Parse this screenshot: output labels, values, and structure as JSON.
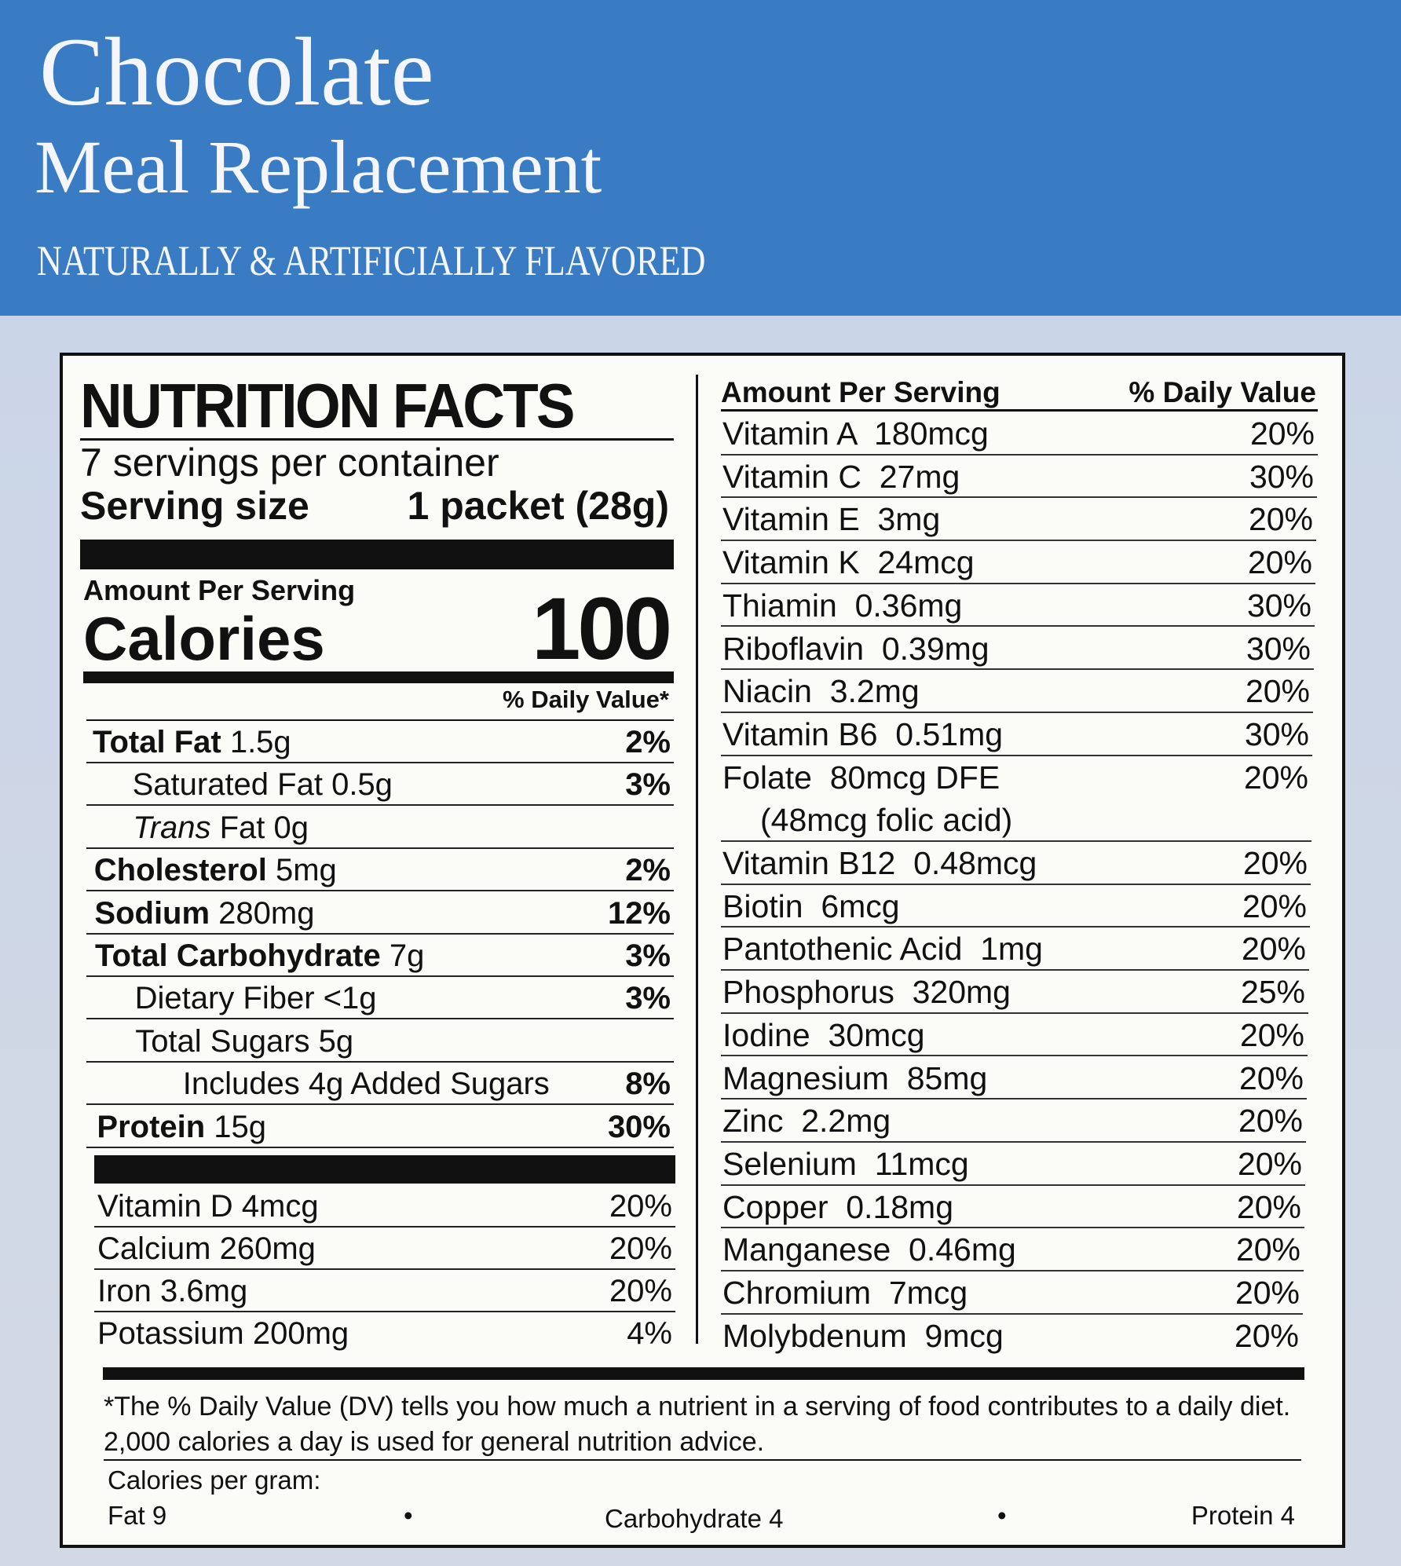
{
  "header": {
    "title": "Chocolate",
    "subtitle": "Meal Replacement",
    "flavor": "NATURALLY & ARTIFICIALLY FLAVORED"
  },
  "colors": {
    "header_blue": "#3a7cc4",
    "background": "#ccd5e4",
    "label_bg": "#fbfbf7"
  },
  "facts": {
    "title": "NUTRITION FACTS",
    "servings": "7 servings per container",
    "serving_size_label": "Serving size",
    "serving_size_value": "1 packet (28g)",
    "amount_per_serving": "Amount Per Serving",
    "calories_label": "Calories",
    "calories_value": "100",
    "dv_header": "% Daily Value*",
    "nutrients": [
      {
        "bold": "Total Fat",
        "text": " 1.5g",
        "dv": "2%",
        "indent": 0
      },
      {
        "bold": "",
        "text": "Saturated Fat 0.5g",
        "dv": "3%",
        "indent": 1
      },
      {
        "italic": "Trans",
        "text": " Fat 0g",
        "dv": "",
        "indent": 1
      },
      {
        "bold": "Cholesterol",
        "text": " 5mg",
        "dv": "2%",
        "indent": 0
      },
      {
        "bold": "Sodium",
        "text": " 280mg",
        "dv": "12%",
        "indent": 0
      },
      {
        "bold": "Total Carbohydrate",
        "text": " 7g",
        "dv": "3%",
        "indent": 0
      },
      {
        "bold": "",
        "text": "Dietary Fiber <1g",
        "dv": "3%",
        "indent": 1
      },
      {
        "bold": "",
        "text": "Total Sugars 5g",
        "dv": "",
        "indent": 1
      },
      {
        "bold": "",
        "text": "Includes 4g Added Sugars",
        "dv": "8%",
        "indent": 2
      },
      {
        "bold": "Protein",
        "text": " 15g",
        "dv": "30%",
        "indent": 0
      }
    ],
    "minerals": [
      {
        "text": "Vitamin D 4mcg",
        "dv": "20%"
      },
      {
        "text": "Calcium 260mg",
        "dv": "20%"
      },
      {
        "text": "Iron 3.6mg",
        "dv": "20%"
      },
      {
        "text": "Potassium 200mg",
        "dv": "4%"
      }
    ],
    "right_header": {
      "amount": "Amount Per Serving",
      "dv": "% Daily Value"
    },
    "vitamins": [
      {
        "text": "Vitamin A  180mcg",
        "dv": "20%"
      },
      {
        "text": "Vitamin C  27mg",
        "dv": "30%"
      },
      {
        "text": "Vitamin E  3mg",
        "dv": "20%"
      },
      {
        "text": "Vitamin K  24mcg",
        "dv": "20%"
      },
      {
        "text": "Thiamin  0.36mg",
        "dv": "30%"
      },
      {
        "text": "Riboflavin  0.39mg",
        "dv": "30%"
      },
      {
        "text": "Niacin  3.2mg",
        "dv": "20%"
      },
      {
        "text": "Vitamin B6  0.51mg",
        "dv": "30%"
      },
      {
        "text": "Folate  80mcg DFE",
        "sub": "(48mcg folic acid)",
        "dv": "20%"
      },
      {
        "text": "Vitamin B12  0.48mcg",
        "dv": "20%"
      },
      {
        "text": "Biotin  6mcg",
        "dv": "20%"
      },
      {
        "text": "Pantothenic Acid  1mg",
        "dv": "20%"
      },
      {
        "text": "Phosphorus  320mg",
        "dv": "25%"
      },
      {
        "text": "Iodine  30mcg",
        "dv": "20%"
      },
      {
        "text": "Magnesium  85mg",
        "dv": "20%"
      },
      {
        "text": "Zinc  2.2mg",
        "dv": "20%"
      },
      {
        "text": "Selenium  11mcg",
        "dv": "20%"
      },
      {
        "text": "Copper  0.18mg",
        "dv": "20%"
      },
      {
        "text": "Manganese  0.46mg",
        "dv": "20%"
      },
      {
        "text": "Chromium  7mcg",
        "dv": "20%"
      },
      {
        "text": "Molybdenum  9mcg",
        "dv": "20%"
      }
    ],
    "footnote": "*The % Daily Value (DV) tells you how much a nutrient in a serving of food contributes to a daily diet. 2,000 calories a day is used for general nutrition advice.",
    "cal_per_gram": "Calories per gram:",
    "fat": "Fat 9",
    "carb": "Carbohydrate 4",
    "protein": "Protein 4",
    "bullet": "•"
  }
}
